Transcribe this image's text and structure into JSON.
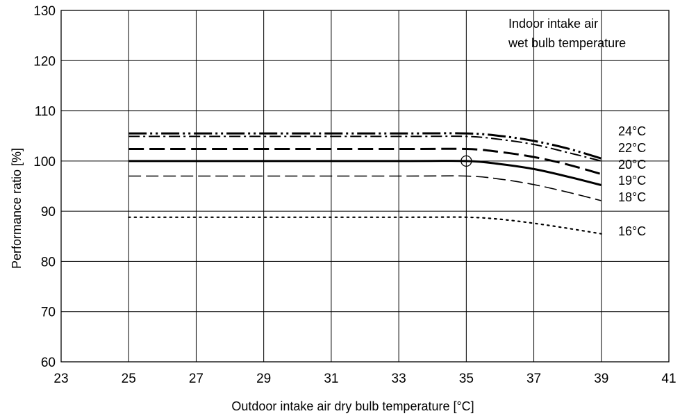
{
  "chart_data": {
    "type": "line",
    "title": "",
    "xlabel": "Outdoor intake air dry bulb temperature [°C]",
    "ylabel": "Performance ratio [%]",
    "xlim": [
      23,
      41
    ],
    "ylim": [
      60,
      130
    ],
    "xticks": [
      23,
      25,
      27,
      29,
      31,
      33,
      35,
      37,
      39,
      41
    ],
    "yticks": [
      60,
      70,
      80,
      90,
      100,
      110,
      120,
      130
    ],
    "grid": true,
    "legend_title": [
      "Indoor intake air",
      "wet bulb temperature"
    ],
    "marker": {
      "x": 35,
      "y": 100,
      "shape": "open-circle"
    },
    "series": [
      {
        "name": "24°C",
        "dash": "long-dash-dot-dot",
        "x": [
          25,
          33,
          35,
          36,
          37,
          38,
          39
        ],
        "y": [
          105.5,
          105.5,
          105.5,
          105.0,
          104.0,
          102.5,
          100.5
        ]
      },
      {
        "name": "22°C",
        "dash": "dash-dot",
        "x": [
          25,
          33,
          35,
          36,
          37,
          38,
          39
        ],
        "y": [
          104.9,
          104.9,
          104.9,
          104.3,
          103.3,
          101.7,
          100.0
        ]
      },
      {
        "name": "20°C",
        "dash": "long-dash",
        "x": [
          25,
          33,
          35,
          36,
          37,
          38,
          39
        ],
        "y": [
          102.4,
          102.4,
          102.4,
          101.8,
          100.8,
          99.3,
          97.4
        ]
      },
      {
        "name": "19°C",
        "dash": "solid",
        "x": [
          25,
          33,
          35,
          36,
          37,
          38,
          39
        ],
        "y": [
          100.0,
          100.0,
          100.0,
          99.4,
          98.4,
          96.9,
          95.2
        ]
      },
      {
        "name": "18°C",
        "dash": "dash",
        "x": [
          25,
          33,
          35,
          36,
          37,
          38,
          39
        ],
        "y": [
          97.0,
          97.0,
          97.0,
          96.4,
          95.3,
          93.8,
          92.1
        ]
      },
      {
        "name": "16°C",
        "dash": "dot",
        "x": [
          25,
          33,
          35,
          36,
          37,
          38,
          39
        ],
        "y": [
          88.8,
          88.8,
          88.8,
          88.4,
          87.6,
          86.6,
          85.5
        ]
      }
    ],
    "series_label_order": [
      "24°C",
      "22°C",
      "20°C",
      "19°C",
      "18°C",
      "16°C"
    ]
  }
}
